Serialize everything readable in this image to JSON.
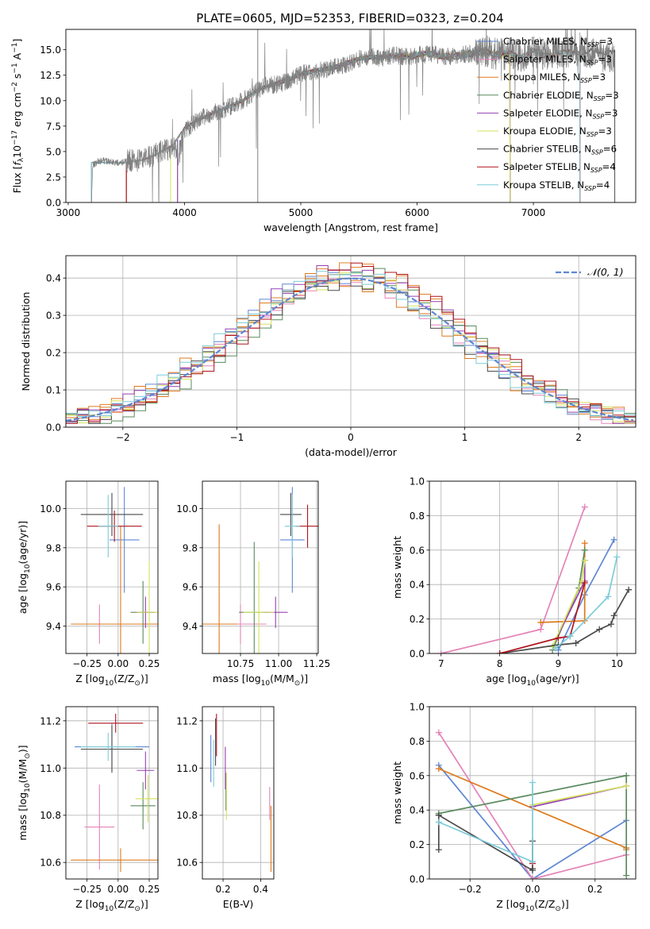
{
  "figure": {
    "title": "PLATE=0605, MJD=52353, FIBERID=0323, z=0.204",
    "series_colors": [
      "#5f86d3",
      "#e0802a",
      "#e483b8",
      "#dd7a1c",
      "#5a8a5e",
      "#9540b3",
      "#d4e25e",
      "#4a4a4a",
      "#b0141c",
      "#7ccbd8"
    ]
  },
  "chart_data": [
    {
      "id": "spectrum",
      "type": "line",
      "xlabel": "wavelength [Angstrom, rest frame]",
      "ylabel": "Flux [f$_\\lambda$10$^{-17}$ erg cm$^{-2}$ s$^{-1}$ A$^{-1}$]",
      "ylabel_parts": {
        "a": "Flux [",
        "b": "f",
        "c": "λ",
        "d": "10",
        "e": "−17",
        "f": " erg cm",
        "g": "−2",
        "h": " s",
        "i": "−1",
        "j": " A",
        "k": "−1",
        "l": "]"
      },
      "xlim": [
        2980,
        7880
      ],
      "ylim": [
        0,
        17
      ],
      "xticks": [
        3000,
        4000,
        5000,
        6000,
        7000
      ],
      "yticks": [
        0.0,
        2.5,
        5.0,
        7.5,
        10.0,
        12.5,
        15.0
      ],
      "grid": false,
      "legend_position": "top-right",
      "legend": [
        {
          "label": "Chabrier MILES, N",
          "sub": "SSP",
          "tail": "=3",
          "color": "#5f86d3"
        },
        {
          "label": "Salpeter MILES, N",
          "sub": "SSP",
          "tail": "=3",
          "color": "#e483b8"
        },
        {
          "label": "Kroupa MILES, N",
          "sub": "SSP",
          "tail": "=3",
          "color": "#dd7a1c"
        },
        {
          "label": "Chabrier ELODIE, N",
          "sub": "SSP",
          "tail": "=3",
          "color": "#5a8a5e"
        },
        {
          "label": "Salpeter ELODIE, N",
          "sub": "SSP",
          "tail": "=3",
          "color": "#9540b3"
        },
        {
          "label": "Kroupa ELODIE, N",
          "sub": "SSP",
          "tail": "=3",
          "color": "#d4e25e"
        },
        {
          "label": "Chabrier STELIB, N",
          "sub": "SSP",
          "tail": "=6",
          "color": "#4a4a4a"
        },
        {
          "label": "Salpeter STELIB, N",
          "sub": "SSP",
          "tail": "=4",
          "color": "#b0141c"
        },
        {
          "label": "Kroupa STELIB, N",
          "sub": "SSP",
          "tail": "=4",
          "color": "#7ccbd8"
        }
      ],
      "data_color": "#808080",
      "data_anchor_x": [
        3200,
        3210,
        3250,
        3300,
        3400,
        3500,
        3600,
        3700,
        3800,
        3900,
        3950,
        4000,
        4100,
        4200,
        4300,
        4400,
        4500,
        4600,
        4700,
        4800,
        4900,
        5000,
        5100,
        5200,
        5300,
        5400,
        5500,
        5600,
        5700,
        5800,
        5900,
        6000,
        6100,
        6200,
        6300,
        6400,
        6500,
        6600,
        6700,
        6800,
        6900,
        7000,
        7100,
        7200,
        7300,
        7400,
        7500,
        7600,
        7700
      ],
      "data_anchor_y": [
        0,
        3.6,
        4.0,
        4.1,
        3.9,
        4.0,
        4.2,
        4.5,
        5.0,
        5.4,
        4.6,
        7.0,
        8.0,
        8.6,
        9.0,
        9.4,
        10.0,
        10.8,
        11.5,
        11.6,
        12.0,
        12.6,
        12.9,
        13.0,
        13.3,
        13.6,
        14.1,
        14.3,
        14.2,
        14.4,
        14.3,
        14.5,
        14.6,
        14.4,
        14.3,
        14.5,
        14.7,
        14.8,
        14.5,
        14.6,
        14.4,
        14.8,
        14.5,
        14.6,
        14.8,
        14.8,
        14.7,
        14.4,
        14.3
      ],
      "model_anchor_x": [
        3500,
        3600,
        3700,
        3800,
        3900,
        4000,
        4100,
        4200,
        4300,
        4400,
        4500,
        4600,
        4700,
        4800,
        4900,
        5000,
        5100,
        5200,
        5300,
        5400,
        5500,
        5600,
        5700,
        5800,
        5900,
        6000,
        6100,
        6200,
        6300,
        6400,
        6500,
        6600,
        6700,
        6800,
        6900,
        7000,
        7100,
        7200,
        7300,
        7400
      ],
      "model_anchor_y": [
        3.9,
        4.1,
        4.4,
        5.0,
        5.6,
        7.3,
        8.0,
        8.6,
        9.0,
        9.5,
        10.0,
        10.8,
        11.4,
        11.7,
        12.1,
        12.6,
        12.9,
        13.1,
        13.3,
        13.7,
        14.1,
        14.3,
        14.2,
        14.4,
        14.3,
        14.5,
        14.6,
        14.4,
        14.3,
        14.5,
        14.7,
        14.8,
        14.5,
        14.6,
        14.4,
        14.8,
        14.5,
        14.6,
        14.8,
        14.8
      ],
      "model_range_start": [
        3500,
        3500,
        3500,
        3940,
        3940,
        3880,
        3200,
        3500,
        3200
      ],
      "model_range_end": [
        6800,
        6800,
        7400,
        6800,
        6800,
        6800,
        7700,
        7400,
        7400
      ]
    },
    {
      "id": "residuals",
      "type": "histogram",
      "xlabel": "(data-model)/error",
      "ylabel": "Normed distribution",
      "xlim": [
        -2.5,
        2.5
      ],
      "ylim": [
        0,
        0.46
      ],
      "xticks": [
        -2,
        -1,
        0,
        1,
        2
      ],
      "yticks": [
        0.0,
        0.1,
        0.2,
        0.3,
        0.4
      ],
      "grid": true,
      "legend_position": "top-right",
      "legend_label": "𝒩(0, 1)",
      "curve_color": "#5f86d3",
      "bin_width": 0.1,
      "series_profile_center": [
        -0.05,
        0.05,
        0.0,
        -0.1,
        0.1,
        0.0,
        0.02,
        -0.02,
        0.08,
        -0.08
      ],
      "series_profile_height": [
        0.41,
        0.42,
        0.39,
        0.4,
        0.41,
        0.43,
        0.4,
        0.39,
        0.42,
        0.41
      ]
    },
    {
      "id": "age_vs_Z",
      "type": "errorbar",
      "xlabel": "Z [log$_{10}$(Z/Z$_\\odot$)]",
      "ylabel": "age  [log$_{10}$(age/yr)]",
      "xlim": [
        -0.42,
        0.32
      ],
      "ylim": [
        9.26,
        10.14
      ],
      "xticks": [
        -0.25,
        0.0,
        0.25
      ],
      "yticks": [
        9.4,
        9.6,
        9.8,
        10.0
      ],
      "grid": true,
      "points": [
        {
          "x": 0.05,
          "xerr": 0.12,
          "y": 9.84,
          "yerr": 0.27,
          "color": "#5f86d3"
        },
        {
          "x": -0.15,
          "xerr": 0.21,
          "y": 9.41,
          "yerr": 0.1,
          "color": "#e483b8"
        },
        {
          "x": 0.02,
          "xerr": 0.4,
          "y": 9.41,
          "yerr": 0.5,
          "color": "#dd7a1c"
        },
        {
          "x": 0.2,
          "xerr": 0.1,
          "y": 9.47,
          "yerr": 0.16,
          "color": "#5a8a5e"
        },
        {
          "x": 0.22,
          "xerr": 0.07,
          "y": 9.47,
          "yerr": 0.08,
          "color": "#9540b3"
        },
        {
          "x": 0.25,
          "xerr": 0.1,
          "y": 9.47,
          "yerr": 0.26,
          "color": "#d4e25e"
        },
        {
          "x": -0.05,
          "xerr": 0.25,
          "y": 9.97,
          "yerr": 0.11,
          "color": "#4a4a4a"
        },
        {
          "x": -0.03,
          "xerr": 0.22,
          "y": 9.91,
          "yerr": 0.08,
          "color": "#b0141c"
        },
        {
          "x": -0.08,
          "xerr": 0.08,
          "y": 9.91,
          "yerr": 0.16,
          "color": "#7ccbd8"
        }
      ]
    },
    {
      "id": "age_vs_mass",
      "type": "errorbar",
      "xlabel": "mass [log$_{10}$(M/M$_\\odot$)]",
      "ylabel": "",
      "xlim": [
        10.5,
        11.26
      ],
      "ylim": [
        9.26,
        10.14
      ],
      "xticks": [
        10.75,
        11.0,
        11.25
      ],
      "yticks": [
        9.4,
        9.6,
        9.8,
        10.0
      ],
      "grid": true,
      "points": [
        {
          "x": 11.09,
          "xerr": 0.08,
          "y": 9.84,
          "yerr": 0.27,
          "color": "#5f86d3"
        },
        {
          "x": 10.75,
          "xerr": 0.17,
          "y": 9.41,
          "yerr": 0.1,
          "color": "#e483b8"
        },
        {
          "x": 10.61,
          "xerr": 0.12,
          "y": 9.41,
          "yerr": 0.51,
          "color": "#dd7a1c"
        },
        {
          "x": 10.84,
          "xerr": 0.1,
          "y": 9.47,
          "yerr": 0.36,
          "color": "#5a8a5e"
        },
        {
          "x": 10.98,
          "xerr": 0.08,
          "y": 9.47,
          "yerr": 0.08,
          "color": "#9540b3"
        },
        {
          "x": 10.87,
          "xerr": 0.1,
          "y": 9.47,
          "yerr": 0.26,
          "color": "#d4e25e"
        },
        {
          "x": 11.08,
          "xerr": 0.07,
          "y": 9.97,
          "yerr": 0.11,
          "color": "#4a4a4a"
        },
        {
          "x": 11.19,
          "xerr": 0.08,
          "y": 9.91,
          "yerr": 0.11,
          "color": "#b0141c"
        },
        {
          "x": 11.09,
          "xerr": 0.05,
          "y": 9.91,
          "yerr": 0.16,
          "color": "#7ccbd8"
        }
      ]
    },
    {
      "id": "weight_vs_age",
      "type": "line",
      "xlabel": "age  [log$_{10}$(age/yr)]",
      "ylabel": "mass weight",
      "xlim": [
        6.8,
        10.32
      ],
      "ylim": [
        0,
        1.0
      ],
      "xticks": [
        7,
        8,
        9,
        10
      ],
      "yticks": [
        0.0,
        0.2,
        0.4,
        0.6,
        0.8,
        1.0
      ],
      "grid": true,
      "series": [
        {
          "color": "#5f86d3",
          "x": [
            9.0,
            9.45,
            9.95
          ],
          "y": [
            0.02,
            0.34,
            0.66
          ]
        },
        {
          "color": "#e483b8",
          "x": [
            7.0,
            8.7,
            9.45
          ],
          "y": [
            0.0,
            0.14,
            0.85
          ]
        },
        {
          "color": "#dd7a1c",
          "x": [
            8.7,
            9.45,
            9.45
          ],
          "y": [
            0.18,
            0.19,
            0.64
          ]
        },
        {
          "color": "#5a8a5e",
          "x": [
            8.9,
            9.35,
            9.45
          ],
          "y": [
            0.02,
            0.38,
            0.6
          ]
        },
        {
          "color": "#9540b3",
          "x": [
            8.9,
            9.45,
            9.45
          ],
          "y": [
            0.04,
            0.42,
            0.54
          ]
        },
        {
          "color": "#d4e25e",
          "x": [
            8.9,
            9.4,
            9.45
          ],
          "y": [
            0.04,
            0.42,
            0.54
          ]
        },
        {
          "color": "#4a4a4a",
          "x": [
            8.0,
            9.0,
            9.3,
            9.7,
            9.9,
            9.95,
            10.2
          ],
          "y": [
            0.0,
            0.05,
            0.06,
            0.14,
            0.17,
            0.22,
            0.37
          ]
        },
        {
          "color": "#b0141c",
          "x": [
            8.0,
            9.0,
            9.2,
            9.45
          ],
          "y": [
            0.0,
            0.09,
            0.1,
            0.41
          ]
        },
        {
          "color": "#7ccbd8",
          "x": [
            8.95,
            9.2,
            9.85,
            10.0
          ],
          "y": [
            0.03,
            0.1,
            0.33,
            0.56
          ]
        }
      ]
    },
    {
      "id": "mass_vs_Z",
      "type": "errorbar",
      "xlabel": "Z [log$_{10}$(Z/Z$_\\odot$)]",
      "ylabel": "mass [log$_{10}$(M/M$_\\odot$)]",
      "xlim": [
        -0.42,
        0.32
      ],
      "ylim": [
        10.53,
        11.26
      ],
      "xticks": [
        -0.25,
        0.0,
        0.25
      ],
      "yticks": [
        10.6,
        10.8,
        11.0,
        11.2
      ],
      "grid": true,
      "points": [
        {
          "x": -0.05,
          "xerr": 0.3,
          "y": 11.09,
          "yerr": 0.1,
          "color": "#5f86d3"
        },
        {
          "x": -0.15,
          "xerr": 0.12,
          "y": 10.75,
          "yerr": 0.18,
          "color": "#e483b8"
        },
        {
          "x": 0.02,
          "xerr": 0.4,
          "y": 10.61,
          "yerr": 0.05,
          "color": "#dd7a1c"
        },
        {
          "x": 0.2,
          "xerr": 0.1,
          "y": 10.84,
          "yerr": 0.1,
          "color": "#5a8a5e"
        },
        {
          "x": 0.22,
          "xerr": 0.07,
          "y": 10.99,
          "yerr": 0.08,
          "color": "#9540b3"
        },
        {
          "x": 0.24,
          "xerr": 0.1,
          "y": 10.87,
          "yerr": 0.1,
          "color": "#d4e25e"
        },
        {
          "x": -0.05,
          "xerr": 0.25,
          "y": 11.08,
          "yerr": 0.1,
          "color": "#4a4a4a"
        },
        {
          "x": -0.02,
          "xerr": 0.22,
          "y": 11.19,
          "yerr": 0.04,
          "color": "#b0141c"
        },
        {
          "x": -0.08,
          "xerr": 0.22,
          "y": 11.09,
          "yerr": 0.06,
          "color": "#7ccbd8"
        }
      ]
    },
    {
      "id": "mass_vs_ebv",
      "type": "errorbar",
      "xlabel": "E(B-V)",
      "ylabel": "",
      "xlim": [
        0.09,
        0.47
      ],
      "ylim": [
        10.53,
        11.26
      ],
      "xticks": [
        0.2,
        0.4
      ],
      "yticks": [
        10.6,
        10.8,
        11.0,
        11.2
      ],
      "grid": true,
      "points": [
        {
          "x": 0.135,
          "y": 11.04,
          "yerr": 0.1,
          "color": "#5f86d3"
        },
        {
          "x": 0.448,
          "y": 10.85,
          "yerr": 0.07,
          "color": "#e483b8"
        },
        {
          "x": 0.455,
          "y": 10.7,
          "yerr": 0.14,
          "color": "#dd7a1c"
        },
        {
          "x": 0.215,
          "y": 10.9,
          "yerr": 0.08,
          "color": "#5a8a5e"
        },
        {
          "x": 0.212,
          "y": 11.0,
          "yerr": 0.09,
          "color": "#9540b3"
        },
        {
          "x": 0.218,
          "y": 10.88,
          "yerr": 0.1,
          "color": "#d4e25e"
        },
        {
          "x": 0.16,
          "y": 11.11,
          "yerr": 0.1,
          "color": "#4a4a4a"
        },
        {
          "x": 0.165,
          "y": 11.14,
          "yerr": 0.09,
          "color": "#b0141c"
        },
        {
          "x": 0.15,
          "y": 11.02,
          "yerr": 0.1,
          "color": "#7ccbd8"
        }
      ]
    },
    {
      "id": "weight_vs_Z",
      "type": "line",
      "xlabel": "Z [log$_{10}$(Z/Z$_\\odot$)]",
      "ylabel": "mass weight",
      "xlim": [
        -0.33,
        0.33
      ],
      "ylim": [
        0,
        1.0
      ],
      "xticks": [
        -0.2,
        0.0,
        0.2
      ],
      "yticks": [
        0.0,
        0.2,
        0.4,
        0.6,
        0.8,
        1.0
      ],
      "grid": true,
      "series": [
        {
          "color": "#5f86d3",
          "x": [
            -0.3,
            0.0,
            0.3
          ],
          "y": [
            0.66,
            0.0,
            0.34
          ]
        },
        {
          "color": "#e483b8",
          "x": [
            -0.3,
            0.0,
            0.3
          ],
          "y": [
            0.85,
            0.0,
            0.14
          ]
        },
        {
          "color": "#dd7a1c",
          "x": [
            -0.3,
            0.3,
            0.3
          ],
          "y": [
            0.64,
            0.18,
            0.17
          ]
        },
        {
          "color": "#5a8a5e",
          "x": [
            -0.3,
            0.3,
            0.3
          ],
          "y": [
            0.38,
            0.6,
            0.02
          ]
        },
        {
          "color": "#9540b3",
          "x": [
            0.0,
            0.3
          ],
          "y": [
            0.42,
            0.54
          ]
        },
        {
          "color": "#d4e25e",
          "x": [
            0.0,
            0.3
          ],
          "y": [
            0.43,
            0.54
          ]
        },
        {
          "color": "#4a4a4a",
          "x": [
            -0.3,
            -0.3,
            0.0,
            0.0,
            0.0
          ],
          "y": [
            0.17,
            0.37,
            0.05,
            0.22,
            0.06
          ]
        },
        {
          "color": "#b0141c",
          "x": [
            0.0,
            0.0
          ],
          "y": [
            0.09,
            0.1
          ]
        },
        {
          "color": "#7ccbd8",
          "x": [
            -0.3,
            0.0,
            0.0
          ],
          "y": [
            0.33,
            0.1,
            0.56
          ]
        }
      ]
    }
  ]
}
